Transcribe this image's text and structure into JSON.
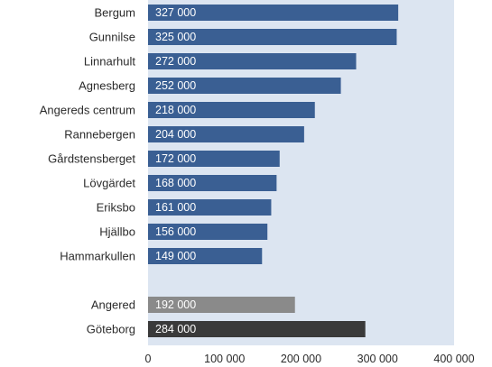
{
  "chart_data": {
    "type": "bar",
    "orientation": "horizontal",
    "categories": [
      "Bergum",
      "Gunnilse",
      "Linnarhult",
      "Agnesberg",
      "Angereds centrum",
      "Rannebergen",
      "Gårdstensberget",
      "Lövgärdet",
      "Eriksbo",
      "Hjällbo",
      "Hammarkullen",
      "",
      "Angered",
      "Göteborg"
    ],
    "values": [
      327000,
      325000,
      272000,
      252000,
      218000,
      204000,
      172000,
      168000,
      161000,
      156000,
      149000,
      null,
      192000,
      284000
    ],
    "value_labels": [
      "327 000",
      "325 000",
      "272 000",
      "252 000",
      "218 000",
      "204 000",
      "172 000",
      "168 000",
      "161 000",
      "156 000",
      "149 000",
      "",
      "192 000",
      "284 000"
    ],
    "bar_colors": [
      "#3a5f93",
      "#3a5f93",
      "#3a5f93",
      "#3a5f93",
      "#3a5f93",
      "#3a5f93",
      "#3a5f93",
      "#3a5f93",
      "#3a5f93",
      "#3a5f93",
      "#3a5f93",
      "",
      "#8a8a8a",
      "#3a3a3a"
    ],
    "xticks": [
      0,
      100000,
      200000,
      300000,
      400000
    ],
    "xtick_labels": [
      "0",
      "100 000",
      "200 000",
      "300 000",
      "400 000"
    ],
    "xlim": [
      0,
      400000
    ],
    "title": "",
    "xlabel": "",
    "ylabel": "",
    "plot_background": "#dce5f1",
    "grid": false,
    "legend": "none"
  }
}
